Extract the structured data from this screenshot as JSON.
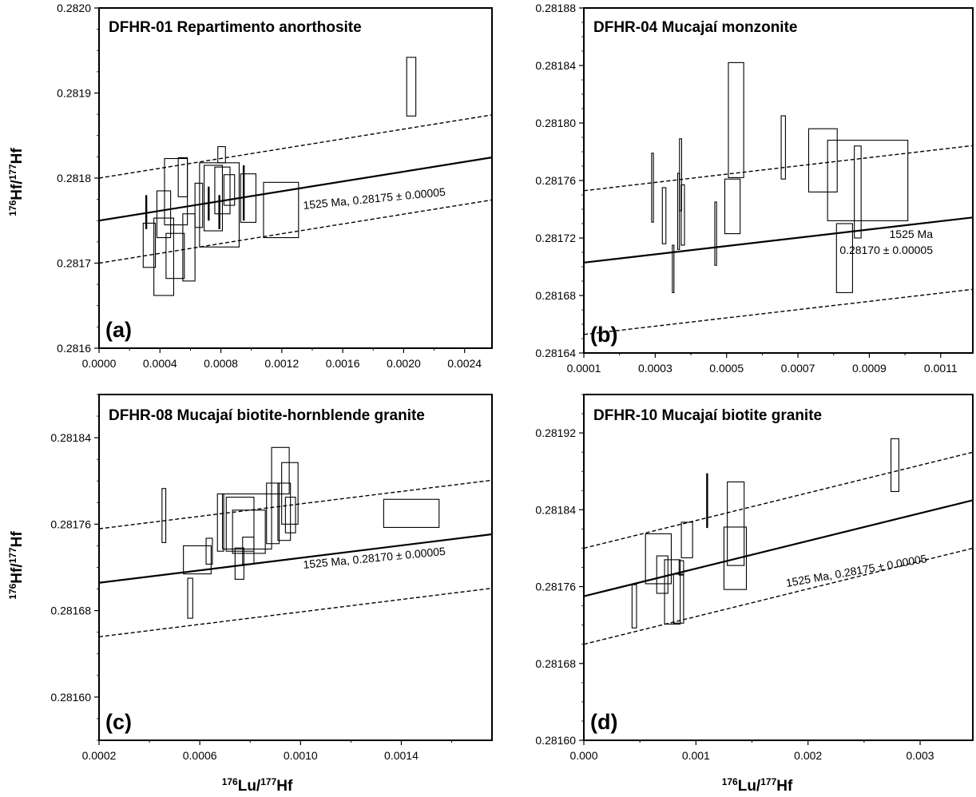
{
  "figure": {
    "ylabel_main": "Hf/",
    "ylabel_sup1": "176",
    "ylabel_sup2": "177",
    "ylabel_tail": "Hf",
    "xlabel_main": "Lu/",
    "xlabel_sup1": "176",
    "xlabel_sup2": "177",
    "xlabel_tail": "Hf"
  },
  "chart_data": [
    {
      "id": "a",
      "type": "scatter",
      "title": "DFHR-01 Repartimento anorthosite",
      "panel_label": "(a)",
      "xlim": [
        0.0,
        0.00258
      ],
      "ylim": [
        0.2816,
        0.282
      ],
      "xticks": [
        0.0,
        0.0004,
        0.0008,
        0.0012,
        0.0016,
        0.002,
        0.0024
      ],
      "xtick_labels": [
        "0.0000",
        "0.0004",
        "0.0008",
        "0.0012",
        "0.0016",
        "0.0020",
        "0.0024"
      ],
      "yticks": [
        0.2816,
        0.2817,
        0.2818,
        0.2819,
        0.282
      ],
      "ytick_labels": [
        "0.2816",
        "0.2817",
        "0.2818",
        "0.2819",
        "0.2820"
      ],
      "reference": {
        "intercept": 0.28175,
        "slope": 0.0288,
        "offset": 5e-05
      },
      "ref_label": [
        "1525 Ma, 0.28175 ± 0.00005"
      ],
      "label_angle": -5.5,
      "error_boxes": [
        {
          "x": [
            0.00029,
            0.00037
          ],
          "y": [
            0.281695,
            0.281747
          ]
        },
        {
          "x": [
            0.00036,
            0.00049
          ],
          "y": [
            0.281662,
            0.281753
          ]
        },
        {
          "x": [
            0.00038,
            0.00047
          ],
          "y": [
            0.28173,
            0.281785
          ]
        },
        {
          "x": [
            0.00043,
            0.00058
          ],
          "y": [
            0.281745,
            0.281823
          ]
        },
        {
          "x": [
            0.00044,
            0.00056
          ],
          "y": [
            0.281682,
            0.281735
          ]
        },
        {
          "x": [
            0.00052,
            0.00058
          ],
          "y": [
            0.281778,
            0.281824
          ]
        },
        {
          "x": [
            0.00055,
            0.00063
          ],
          "y": [
            0.281679,
            0.281758
          ]
        },
        {
          "x": [
            0.00063,
            0.00068
          ],
          "y": [
            0.281742,
            0.281794
          ]
        },
        {
          "x": [
            0.00066,
            0.00092
          ],
          "y": [
            0.281719,
            0.281818
          ]
        },
        {
          "x": [
            0.00069,
            0.00081
          ],
          "y": [
            0.281738,
            0.281815
          ]
        },
        {
          "x": [
            0.00076,
            0.00086
          ],
          "y": [
            0.281758,
            0.281813
          ]
        },
        {
          "x": [
            0.00078,
            0.00083
          ],
          "y": [
            0.281818,
            0.281837
          ]
        },
        {
          "x": [
            0.00082,
            0.00089
          ],
          "y": [
            0.281768,
            0.281804
          ]
        },
        {
          "x": [
            0.00093,
            0.00103
          ],
          "y": [
            0.281748,
            0.281805
          ]
        },
        {
          "x": [
            0.00108,
            0.00131
          ],
          "y": [
            0.28173,
            0.281795
          ]
        },
        {
          "x": [
            0.00202,
            0.00208
          ],
          "y": [
            0.281873,
            0.281942
          ]
        }
      ],
      "error_bars": [
        {
          "x": 0.00031,
          "y": [
            0.28174,
            0.28178
          ]
        },
        {
          "x": 0.00072,
          "y": [
            0.28175,
            0.28179
          ]
        },
        {
          "x": 0.00079,
          "y": [
            0.28174,
            0.28178
          ]
        },
        {
          "x": 0.00095,
          "y": [
            0.28175,
            0.281815
          ]
        }
      ]
    },
    {
      "id": "b",
      "type": "scatter",
      "title": "DFHR-04 Mucajaí monzonite",
      "panel_label": "(b)",
      "xlim": [
        0.0001,
        0.00119
      ],
      "ylim": [
        0.28164,
        0.28188
      ],
      "xticks": [
        0.0001,
        0.0003,
        0.0005,
        0.0007,
        0.0009,
        0.0011
      ],
      "xtick_labels": [
        "0.0001",
        "0.0003",
        "0.0005",
        "0.0007",
        "0.0009",
        "0.0011"
      ],
      "yticks": [
        0.28164,
        0.28168,
        0.28172,
        0.28176,
        0.2818,
        0.28184,
        0.28188
      ],
      "ytick_labels": [
        "0.28164",
        "0.28168",
        "0.28172",
        "0.28176",
        "0.28180",
        "0.28184",
        "0.28188"
      ],
      "reference": {
        "intercept": 0.2817,
        "slope": 0.0288,
        "offset": 5e-05
      },
      "ref_label": [
        "1525 Ma",
        "0.28170 ± 0.00005"
      ],
      "label_angle": 0,
      "error_boxes": [
        {
          "x": [
            0.00029,
            0.000295
          ],
          "y": [
            0.281731,
            0.281779
          ]
        },
        {
          "x": [
            0.00032,
            0.00033
          ],
          "y": [
            0.281716,
            0.281755
          ]
        },
        {
          "x": [
            0.000348,
            0.000352
          ],
          "y": [
            0.281682,
            0.281715
          ]
        },
        {
          "x": [
            0.000363,
            0.000368
          ],
          "y": [
            0.281712,
            0.281765
          ]
        },
        {
          "x": [
            0.000368,
            0.000374
          ],
          "y": [
            0.281739,
            0.281789
          ]
        },
        {
          "x": [
            0.000373,
            0.000382
          ],
          "y": [
            0.281715,
            0.281757
          ]
        },
        {
          "x": [
            0.000467,
            0.000472
          ],
          "y": [
            0.281701,
            0.281745
          ]
        },
        {
          "x": [
            0.000495,
            0.000538
          ],
          "y": [
            0.281723,
            0.281761
          ]
        },
        {
          "x": [
            0.000505,
            0.000548
          ],
          "y": [
            0.281762,
            0.281842
          ]
        },
        {
          "x": [
            0.000653,
            0.000665
          ],
          "y": [
            0.281761,
            0.281805
          ]
        },
        {
          "x": [
            0.00073,
            0.00081
          ],
          "y": [
            0.281752,
            0.281796
          ]
        },
        {
          "x": [
            0.000783,
            0.001008
          ],
          "y": [
            0.281732,
            0.281788
          ]
        },
        {
          "x": [
            0.000808,
            0.000853
          ],
          "y": [
            0.281682,
            0.28173
          ]
        },
        {
          "x": [
            0.000858,
            0.000877
          ],
          "y": [
            0.28172,
            0.281784
          ]
        }
      ],
      "error_bars": []
    },
    {
      "id": "c",
      "type": "scatter",
      "title": "DFHR-08 Mucajaí biotite-hornblende granite",
      "panel_label": "(c)",
      "xlim": [
        0.0002,
        0.00176
      ],
      "ylim": [
        0.28156,
        0.28188
      ],
      "xticks": [
        0.0002,
        0.0006,
        0.001,
        0.0014
      ],
      "xtick_labels": [
        "0.0002",
        "0.0006",
        "0.0010",
        "0.0014"
      ],
      "yticks": [
        0.2816,
        0.28168,
        0.28176,
        0.28184
      ],
      "ytick_labels": [
        "0.28160",
        "0.28168",
        "0.28176",
        "0.28184"
      ],
      "reference": {
        "intercept": 0.2817,
        "slope": 0.0288,
        "offset": 5e-05
      },
      "ref_label": [
        "1525 Ma, 0.28170 ± 0.00005"
      ],
      "label_angle": -5.5,
      "error_boxes": [
        {
          "x": [
            0.00045,
            0.000465
          ],
          "y": [
            0.281743,
            0.281793
          ]
        },
        {
          "x": [
            0.000535,
            0.000645
          ],
          "y": [
            0.281714,
            0.28174
          ]
        },
        {
          "x": [
            0.000552,
            0.000572
          ],
          "y": [
            0.281673,
            0.28171
          ]
        },
        {
          "x": [
            0.000625,
            0.00065
          ],
          "y": [
            0.281723,
            0.281747
          ]
        },
        {
          "x": [
            0.00067,
            0.000695
          ],
          "y": [
            0.281735,
            0.281788
          ]
        },
        {
          "x": [
            0.00069,
            0.000885
          ],
          "y": [
            0.281737,
            0.281788
          ]
        },
        {
          "x": [
            0.000705,
            0.000815
          ],
          "y": [
            0.281735,
            0.281785
          ]
        },
        {
          "x": [
            0.00073,
            0.00086
          ],
          "y": [
            0.281733,
            0.281773
          ]
        },
        {
          "x": [
            0.00074,
            0.000775
          ],
          "y": [
            0.281709,
            0.281738
          ]
        },
        {
          "x": [
            0.00077,
            0.000815
          ],
          "y": [
            0.281723,
            0.281748
          ]
        },
        {
          "x": [
            0.000865,
            0.000915
          ],
          "y": [
            0.281742,
            0.281798
          ]
        },
        {
          "x": [
            0.000885,
            0.000955
          ],
          "y": [
            0.281788,
            0.281831
          ]
        },
        {
          "x": [
            0.00091,
            0.00096
          ],
          "y": [
            0.281745,
            0.281798
          ]
        },
        {
          "x": [
            0.000925,
            0.00099
          ],
          "y": [
            0.28176,
            0.281817
          ]
        },
        {
          "x": [
            0.00094,
            0.00098
          ],
          "y": [
            0.281752,
            0.281785
          ]
        },
        {
          "x": [
            0.00133,
            0.00155
          ],
          "y": [
            0.281757,
            0.281783
          ]
        }
      ],
      "error_bars": []
    },
    {
      "id": "d",
      "type": "scatter",
      "title": "DFHR-10 Mucajaí biotite granite",
      "panel_label": "(d)",
      "xlim": [
        0.0,
        0.00347
      ],
      "ylim": [
        0.2816,
        0.28196
      ],
      "xticks": [
        0.0,
        0.001,
        0.002,
        0.003
      ],
      "xtick_labels": [
        "0.000",
        "0.001",
        "0.002",
        "0.003"
      ],
      "yticks": [
        0.2816,
        0.28168,
        0.28176,
        0.28184,
        0.28192
      ],
      "ytick_labels": [
        "0.28160",
        "0.28168",
        "0.28176",
        "0.28184",
        "0.28192"
      ],
      "reference": {
        "intercept": 0.28175,
        "slope": 0.0288,
        "offset": 5e-05
      },
      "ref_label": [
        "1525 Ma, 0.28175 ± 0.00005"
      ],
      "label_angle": -10,
      "error_boxes": [
        {
          "x": [
            0.00043,
            0.00047
          ],
          "y": [
            0.281717,
            0.281762
          ]
        },
        {
          "x": [
            0.00055,
            0.00078
          ],
          "y": [
            0.281763,
            0.281815
          ]
        },
        {
          "x": [
            0.00065,
            0.00075
          ],
          "y": [
            0.281753,
            0.281792
          ]
        },
        {
          "x": [
            0.00072,
            0.00086
          ],
          "y": [
            0.281721,
            0.281788
          ]
        },
        {
          "x": [
            0.0008,
            0.00089
          ],
          "y": [
            0.281722,
            0.281773
          ]
        },
        {
          "x": [
            0.00085,
            0.00089
          ],
          "y": [
            0.281772,
            0.281787
          ]
        },
        {
          "x": [
            0.00087,
            0.00097
          ],
          "y": [
            0.28179,
            0.281827
          ]
        },
        {
          "x": [
            0.00125,
            0.00145
          ],
          "y": [
            0.281757,
            0.281822
          ]
        },
        {
          "x": [
            0.00128,
            0.00143
          ],
          "y": [
            0.281782,
            0.281869
          ]
        },
        {
          "x": [
            0.00274,
            0.00281
          ],
          "y": [
            0.281859,
            0.281914
          ]
        }
      ],
      "error_bars": [
        {
          "x": 0.0011,
          "y": [
            0.281821,
            0.281878
          ]
        }
      ]
    }
  ]
}
